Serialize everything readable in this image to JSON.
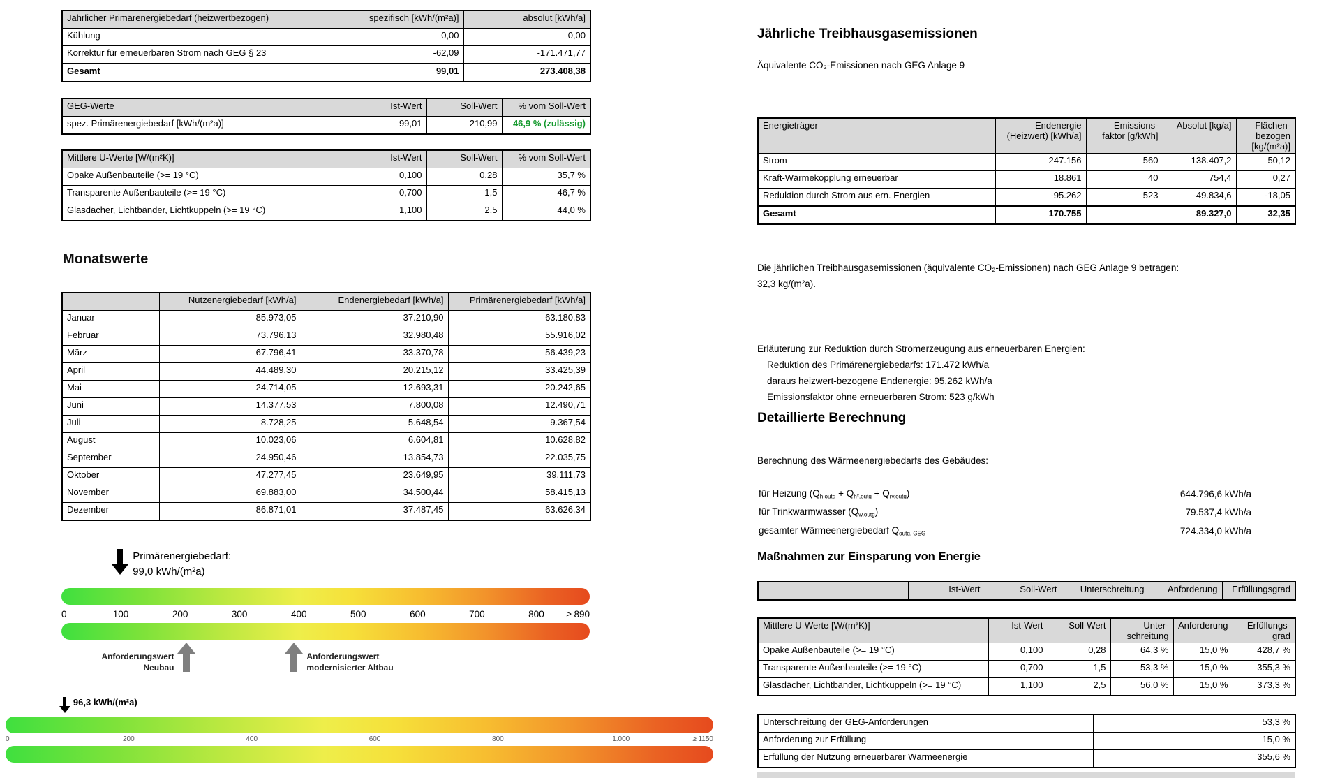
{
  "page_left": {
    "annual_table": {
      "columns": [
        "Jährlicher Primärenergiebedarf (heizwertbezogen)",
        "spezifisch [kWh/(m²a)]",
        "absolut [kWh/a]"
      ],
      "rows": [
        {
          "cells": [
            "Kühlung",
            "0,00",
            "0,00"
          ]
        },
        {
          "cells": [
            "Korrektur für erneuerbaren Strom nach GEG § 23",
            "-62,09",
            "-171.471,77"
          ]
        },
        {
          "cells": [
            "Gesamt",
            "99,01",
            "273.408,38"
          ],
          "bold": true
        }
      ]
    },
    "geg_table": {
      "columns": [
        "GEG-Werte",
        "Ist-Wert",
        "Soll-Wert",
        "% vom Soll-Wert"
      ],
      "rows": [
        {
          "cells": [
            "spez. Primärenergiebedarf [kWh/(m²a)]",
            "99,01",
            "210,99",
            {
              "text": "46,9 % (zulässig)",
              "class": "green"
            }
          ]
        }
      ]
    },
    "uwerte_table": {
      "columns": [
        "Mittlere U-Werte [W/(m²K)]",
        "Ist-Wert",
        "Soll-Wert",
        "% vom Soll-Wert"
      ],
      "rows": [
        {
          "cells": [
            "Opake Außenbauteile (>= 19 °C)",
            "0,100",
            "0,28",
            "35,7 %"
          ]
        },
        {
          "cells": [
            "Transparente Außenbauteile (>= 19 °C)",
            "0,700",
            "1,5",
            "46,7 %"
          ]
        },
        {
          "cells": [
            "Glasdächer, Lichtbänder, Lichtkuppeln (>= 19 °C)",
            "1,100",
            "2,5",
            "44,0 %"
          ]
        }
      ]
    },
    "monthly": {
      "title": "Monatswerte",
      "table": {
        "columns": [
          "",
          "Nutzenergiebedarf [kWh/a]",
          "Endenergiebedarf [kWh/a]",
          "Primärenergiebedarf [kWh/a]"
        ],
        "rows": [
          {
            "cells": [
              "Januar",
              "85.973,05",
              "37.210,90",
              "63.180,83"
            ]
          },
          {
            "cells": [
              "Februar",
              "73.796,13",
              "32.980,48",
              "55.916,02"
            ]
          },
          {
            "cells": [
              "März",
              "67.796,41",
              "33.370,78",
              "56.439,23"
            ]
          },
          {
            "cells": [
              "April",
              "44.489,30",
              "20.215,12",
              "33.425,39"
            ]
          },
          {
            "cells": [
              "Mai",
              "24.714,05",
              "12.693,31",
              "20.242,65"
            ]
          },
          {
            "cells": [
              "Juni",
              "14.377,53",
              "7.800,08",
              "12.490,71"
            ]
          },
          {
            "cells": [
              "Juli",
              "8.728,25",
              "5.648,54",
              "9.367,54"
            ]
          },
          {
            "cells": [
              "August",
              "10.023,06",
              "6.604,81",
              "10.628,82"
            ]
          },
          {
            "cells": [
              "September",
              "24.950,46",
              "13.854,73",
              "22.035,75"
            ]
          },
          {
            "cells": [
              "Oktober",
              "47.277,45",
              "23.649,95",
              "39.111,73"
            ]
          },
          {
            "cells": [
              "November",
              "69.883,00",
              "34.500,44",
              "58.415,13"
            ]
          },
          {
            "cells": [
              "Dezember",
              "86.871,01",
              "37.487,45",
              "63.626,34"
            ]
          }
        ]
      }
    },
    "scale1": {
      "max": 890,
      "value": 99,
      "label_line1": "Primärenergiebedarf:",
      "label_line2": "99,0 kWh/(m²a)",
      "ticks": [
        {
          "label": "0",
          "value": 0
        },
        {
          "label": "100",
          "value": 100
        },
        {
          "label": "200",
          "value": 200
        },
        {
          "label": "300",
          "value": 300
        },
        {
          "label": "400",
          "value": 400
        },
        {
          "label": "500",
          "value": 500
        },
        {
          "label": "600",
          "value": 600
        },
        {
          "label": "700",
          "value": 700
        },
        {
          "label": "800",
          "value": 800
        },
        {
          "label": "≥ 890",
          "value": 890
        }
      ],
      "requirements": [
        {
          "value": 211,
          "label_line1": "Anforderungswert",
          "label_line2": "Neubau"
        },
        {
          "value": 392,
          "label_line1": "Anforderungswert",
          "label_line2": "modernisierter Altbau"
        }
      ]
    },
    "scale2": {
      "max": 1150,
      "value": 96.3,
      "label": "96,3 kWh/(m²a)",
      "ticks": [
        {
          "label": "0",
          "value": 0
        },
        {
          "label": "200",
          "value": 200
        },
        {
          "label": "400",
          "value": 400
        },
        {
          "label": "600",
          "value": 600
        },
        {
          "label": "800",
          "value": 800
        },
        {
          "label": "1.000",
          "value": 1000
        },
        {
          "label": "≥ 1150",
          "value": 1150
        }
      ]
    }
  },
  "page_right": {
    "emissions": {
      "title": "Jährliche Treibhausgasemissionen",
      "subtitle": "Äquivalente CO₂-Emissionen nach GEG Anlage 9",
      "table": {
        "columns": [
          "Energieträger",
          "Endenergie\n(Heizwert) [kWh/a]",
          "Emissions-\nfaktor [g/kWh]",
          "Absolut [kg/a]",
          "Flächen-\nbezogen\n[kg/(m²a)]"
        ],
        "rows": [
          {
            "cells": [
              "Strom",
              "247.156",
              "560",
              "138.407,2",
              "50,12"
            ]
          },
          {
            "cells": [
              "Kraft-Wärmekopplung erneuerbar",
              "18.861",
              "40",
              "754,4",
              "0,27"
            ]
          },
          {
            "cells": [
              "Reduktion durch Strom aus ern. Energien",
              "-95.262",
              "523",
              "-49.834,6",
              "-18,05"
            ]
          },
          {
            "cells": [
              "Gesamt",
              "170.755",
              "",
              "89.327,0",
              "32,35"
            ],
            "bold": true
          }
        ]
      },
      "summary_line1": "Die jährlichen Treibhausgasemissionen (äquivalente CO₂-Emissionen) nach GEG Anlage 9 betragen:",
      "summary_line2": "32,3 kg/(m²a).",
      "explanation_title": "Erläuterung zur Reduktion durch Stromerzeugung aus erneuerbaren Energien:",
      "explanation_items": [
        "Reduktion des Primärenergiebedarfs: 171.472 kWh/a",
        "daraus heizwert-bezogene Endenergie: 95.262 kWh/a",
        "Emissionsfaktor ohne erneuerbaren Strom: 523 g/kWh"
      ]
    },
    "detail": {
      "title": "Detaillierte Berechnung",
      "intro": "Berechnung des Wärmeenergiebedarfs des Gebäudes:",
      "table": {
        "columns": [],
        "rows": [
          {
            "cells": [
              [
                {
                  "t": "für Heizung (Q"
                },
                {
                  "t": "h,outg",
                  "sub": true
                },
                {
                  "t": " + Q"
                },
                {
                  "t": "h*,outg",
                  "sub": true
                },
                {
                  "t": " + Q"
                },
                {
                  "t": "rv,outg",
                  "sub": true
                },
                {
                  "t": ")"
                }
              ],
              "644.796,6 kWh/a"
            ]
          },
          {
            "cells": [
              [
                {
                  "t": "für Trinkwarmwasser (Q"
                },
                {
                  "t": "w,outg",
                  "sub": true
                },
                {
                  "t": ")"
                }
              ],
              "79.537,4 kWh/a"
            ],
            "rule": true
          },
          {
            "cells": [
              [
                {
                  "t": "gesamter Wärmeenergiebedarf Q"
                },
                {
                  "t": "outg, GEG",
                  "sub": true
                }
              ],
              "724.334,0 kWh/a"
            ]
          }
        ]
      }
    },
    "measures": {
      "title": "Maßnahmen zur Einsparung von Energie",
      "header_table": {
        "columns": [
          "",
          "Ist-Wert",
          "Soll-Wert",
          "Unterschreitung",
          "Anforderung",
          "Erfüllungsgrad"
        ],
        "rows": []
      },
      "uwerte_table": {
        "columns": [
          "Mittlere U-Werte [W/(m²K)]",
          "Ist-Wert",
          "Soll-Wert",
          "Unter-\nschreitung",
          "Anforderung",
          "Erfüllungs-\ngrad"
        ],
        "rows": [
          {
            "cells": [
              "Opake Außenbauteile (>= 19 °C)",
              "0,100",
              "0,28",
              "64,3 %",
              "15,0 %",
              "428,7 %"
            ]
          },
          {
            "cells": [
              "Transparente Außenbauteile (>= 19 °C)",
              "0,700",
              "1,5",
              "53,3 %",
              "15,0 %",
              "355,3 %"
            ]
          },
          {
            "cells": [
              "Glasdächer, Lichtbänder, Lichtkuppeln (>= 19 °C)",
              "1,100",
              "2,5",
              "56,0 %",
              "15,0 %",
              "373,3 %"
            ]
          }
        ]
      },
      "result_table": {
        "columns": [],
        "rows": [
          {
            "cells": [
              "Unterschreitung der GEG-Anforderungen",
              "53,3 %"
            ]
          },
          {
            "cells": [
              "Anforderung zur Erfüllung",
              "15,0 %"
            ]
          },
          {
            "cells": [
              "Erfüllung der Nutzung erneuerbarer Wärmeenergie",
              "355,6 %"
            ]
          }
        ]
      }
    }
  }
}
